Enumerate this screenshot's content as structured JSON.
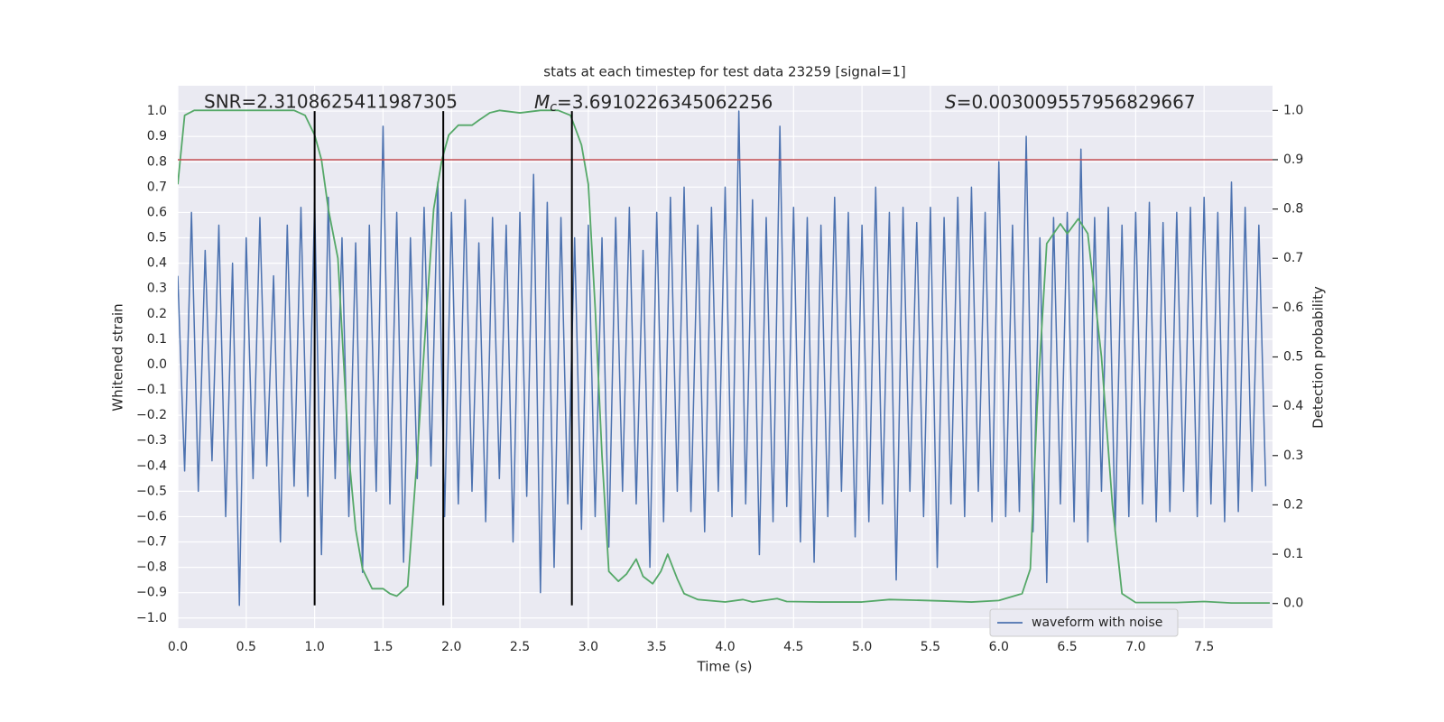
{
  "chart_data": {
    "type": "line",
    "title": "stats at each timestep for test data 23259 [signal=1]",
    "xlabel": "Time (s)",
    "ylabel": "Whitened strain",
    "y2label": "Detection probability",
    "annotations": [
      "SNR=2.3108625411987305",
      {
        "symbol": "M",
        "sub": "c",
        "rest": "=3.6910226345062256"
      },
      {
        "symbol": "S",
        "rest": "=0.003009557956829667"
      }
    ],
    "xlim": [
      0,
      8
    ],
    "ylim": [
      -1.04,
      1.1
    ],
    "y2lim": [
      -0.05,
      1.05
    ],
    "xticks": [
      {
        "value": 0,
        "label": "0.0"
      },
      {
        "value": 0.5,
        "label": "0.5"
      },
      {
        "value": 1,
        "label": "1.0"
      },
      {
        "value": 1.5,
        "label": "1.5"
      },
      {
        "value": 2,
        "label": "2.0"
      },
      {
        "value": 2.5,
        "label": "2.5"
      },
      {
        "value": 3,
        "label": "3.0"
      },
      {
        "value": 3.5,
        "label": "3.5"
      },
      {
        "value": 4,
        "label": "4.0"
      },
      {
        "value": 4.5,
        "label": "4.5"
      },
      {
        "value": 5,
        "label": "5.0"
      },
      {
        "value": 5.5,
        "label": "5.5"
      },
      {
        "value": 6,
        "label": "6.0"
      },
      {
        "value": 6.5,
        "label": "6.5"
      },
      {
        "value": 7,
        "label": "7.0"
      },
      {
        "value": 7.5,
        "label": "7.5"
      }
    ],
    "yticks": [
      {
        "value": 1,
        "label": "1.0"
      },
      {
        "value": 0.9,
        "label": "0.9"
      },
      {
        "value": 0.8,
        "label": "0.8"
      },
      {
        "value": 0.7,
        "label": "0.7"
      },
      {
        "value": 0.6,
        "label": "0.6"
      },
      {
        "value": 0.5,
        "label": "0.5"
      },
      {
        "value": 0.4,
        "label": "0.4"
      },
      {
        "value": 0.3,
        "label": "0.3"
      },
      {
        "value": 0.2,
        "label": "0.2"
      },
      {
        "value": 0.1,
        "label": "0.1"
      },
      {
        "value": 0,
        "label": "0.0"
      },
      {
        "value": -0.1,
        "label": "−0.1"
      },
      {
        "value": -0.2,
        "label": "−0.2"
      },
      {
        "value": -0.3,
        "label": "−0.3"
      },
      {
        "value": -0.4,
        "label": "−0.4"
      },
      {
        "value": -0.5,
        "label": "−0.5"
      },
      {
        "value": -0.6,
        "label": "−0.6"
      },
      {
        "value": -0.7,
        "label": "−0.7"
      },
      {
        "value": -0.8,
        "label": "−0.8"
      },
      {
        "value": -0.9,
        "label": "−0.9"
      },
      {
        "value": -1,
        "label": "−1.0"
      }
    ],
    "y2ticks": [
      {
        "value": 1,
        "label": "1.0"
      },
      {
        "value": 0.9,
        "label": "0.9"
      },
      {
        "value": 0.8,
        "label": "0.8"
      },
      {
        "value": 0.7,
        "label": "0.7"
      },
      {
        "value": 0.6,
        "label": "0.6"
      },
      {
        "value": 0.5,
        "label": "0.5"
      },
      {
        "value": 0.4,
        "label": "0.4"
      },
      {
        "value": 0.3,
        "label": "0.3"
      },
      {
        "value": 0.2,
        "label": "0.2"
      },
      {
        "value": 0.1,
        "label": "0.1"
      },
      {
        "value": 0,
        "label": "0.0"
      }
    ],
    "grid": true,
    "legend": "lower right",
    "hline": {
      "value": 0.9,
      "axis": "y2",
      "color": "#c44e52"
    },
    "vlines": [
      1.0,
      1.94,
      2.88
    ],
    "vline_range": [
      -0.95,
      1.0
    ],
    "vline_color": "#000000",
    "series": [
      {
        "name": "waveform with noise",
        "color": "#4c72b0",
        "x": [
          0,
          0.05,
          0.1,
          0.15,
          0.2,
          0.25,
          0.3,
          0.35,
          0.4,
          0.45,
          0.5,
          0.55,
          0.6,
          0.65,
          0.7,
          0.75,
          0.8,
          0.85,
          0.9,
          0.95,
          1,
          1.05,
          1.1,
          1.15,
          1.2,
          1.25,
          1.3,
          1.35,
          1.4,
          1.45,
          1.5,
          1.55,
          1.6,
          1.65,
          1.7,
          1.75,
          1.8,
          1.85,
          1.9,
          1.95,
          2,
          2.05,
          2.1,
          2.15,
          2.2,
          2.25,
          2.3,
          2.35,
          2.4,
          2.45,
          2.5,
          2.55,
          2.6,
          2.65,
          2.7,
          2.75,
          2.8,
          2.85,
          2.9,
          2.95,
          3,
          3.05,
          3.1,
          3.15,
          3.2,
          3.25,
          3.3,
          3.35,
          3.4,
          3.45,
          3.5,
          3.55,
          3.6,
          3.65,
          3.7,
          3.75,
          3.8,
          3.85,
          3.9,
          3.95,
          4,
          4.05,
          4.1,
          4.15,
          4.2,
          4.25,
          4.3,
          4.35,
          4.4,
          4.45,
          4.5,
          4.55,
          4.6,
          4.65,
          4.7,
          4.75,
          4.8,
          4.85,
          4.9,
          4.95,
          5,
          5.05,
          5.1,
          5.15,
          5.2,
          5.25,
          5.3,
          5.35,
          5.4,
          5.45,
          5.5,
          5.55,
          5.6,
          5.65,
          5.7,
          5.75,
          5.8,
          5.85,
          5.9,
          5.95,
          6,
          6.05,
          6.1,
          6.15,
          6.2,
          6.25,
          6.3,
          6.35,
          6.4,
          6.45,
          6.5,
          6.55,
          6.6,
          6.65,
          6.7,
          6.75,
          6.8,
          6.85,
          6.9,
          6.95,
          7,
          7.05,
          7.1,
          7.15,
          7.2,
          7.25,
          7.3,
          7.35,
          7.4,
          7.45,
          7.5,
          7.55,
          7.6,
          7.65,
          7.7,
          7.75,
          7.8,
          7.85,
          7.9,
          7.95
        ],
        "values": [
          0.35,
          -0.42,
          0.6,
          -0.5,
          0.45,
          -0.38,
          0.55,
          -0.6,
          0.4,
          -0.95,
          0.5,
          -0.45,
          0.58,
          -0.4,
          0.35,
          -0.7,
          0.55,
          -0.48,
          0.62,
          -0.52,
          0.64,
          -0.75,
          0.66,
          -0.45,
          0.5,
          -0.6,
          0.48,
          -0.82,
          0.55,
          -0.5,
          0.94,
          -0.55,
          0.6,
          -0.78,
          0.5,
          -0.45,
          0.62,
          -0.4,
          0.72,
          -0.6,
          0.6,
          -0.55,
          0.65,
          -0.5,
          0.48,
          -0.62,
          0.58,
          -0.45,
          0.55,
          -0.7,
          0.6,
          -0.52,
          0.75,
          -0.9,
          0.64,
          -0.8,
          0.58,
          -0.55,
          0.5,
          -0.65,
          0.55,
          -0.6,
          0.5,
          -0.72,
          0.58,
          -0.5,
          0.62,
          -0.55,
          0.45,
          -0.8,
          0.6,
          -0.62,
          0.66,
          -0.5,
          0.7,
          -0.58,
          0.55,
          -0.66,
          0.62,
          -0.5,
          0.7,
          -0.6,
          1.0,
          -0.55,
          0.65,
          -0.75,
          0.58,
          -0.62,
          0.94,
          -0.56,
          0.62,
          -0.7,
          0.58,
          -0.78,
          0.55,
          -0.6,
          0.66,
          -0.5,
          0.6,
          -0.68,
          0.55,
          -0.62,
          0.7,
          -0.55,
          0.6,
          -0.85,
          0.62,
          -0.5,
          0.56,
          -0.6,
          0.62,
          -0.8,
          0.58,
          -0.55,
          0.66,
          -0.6,
          0.7,
          -0.5,
          0.6,
          -0.62,
          0.8,
          -0.6,
          0.55,
          -0.58,
          0.9,
          -0.66,
          0.5,
          -0.86,
          0.58,
          -0.55,
          0.6,
          -0.62,
          0.85,
          -0.7,
          0.58,
          -0.5,
          0.62,
          -0.66,
          0.55,
          -0.6,
          0.6,
          -0.55,
          0.64,
          -0.62,
          0.56,
          -0.58,
          0.6,
          -0.5,
          0.62,
          -0.6,
          0.66,
          -0.55,
          0.6,
          -0.62,
          0.72,
          -0.58,
          0.62,
          -0.5,
          0.55,
          -0.48
        ]
      },
      {
        "color": "#55a868",
        "axis": "y2",
        "x": [
          0,
          0.05,
          0.12,
          0.3,
          0.5,
          0.7,
          0.85,
          0.93,
          1.0,
          1.05,
          1.1,
          1.17,
          1.25,
          1.3,
          1.35,
          1.42,
          1.5,
          1.55,
          1.6,
          1.68,
          1.75,
          1.82,
          1.87,
          1.93,
          1.98,
          2.05,
          2.15,
          2.2,
          2.28,
          2.35,
          2.5,
          2.65,
          2.78,
          2.87,
          2.95,
          3.0,
          3.05,
          3.1,
          3.15,
          3.22,
          3.28,
          3.35,
          3.4,
          3.47,
          3.53,
          3.58,
          3.65,
          3.7,
          3.8,
          4.0,
          4.13,
          4.2,
          4.38,
          4.45,
          4.7,
          5.0,
          5.2,
          5.35,
          5.6,
          5.8,
          6.0,
          6.17,
          6.23,
          6.28,
          6.35,
          6.45,
          6.5,
          6.58,
          6.65,
          6.75,
          6.83,
          6.9,
          7.0,
          7.3,
          7.5,
          7.7,
          7.98
        ],
        "values": [
          0.85,
          0.99,
          1.0,
          1.0,
          1.0,
          1.0,
          1.0,
          0.99,
          0.95,
          0.9,
          0.8,
          0.7,
          0.3,
          0.15,
          0.07,
          0.03,
          0.03,
          0.02,
          0.015,
          0.035,
          0.3,
          0.6,
          0.8,
          0.9,
          0.95,
          0.97,
          0.97,
          0.98,
          0.995,
          1.0,
          0.995,
          1.0,
          1.0,
          0.99,
          0.93,
          0.85,
          0.6,
          0.3,
          0.065,
          0.045,
          0.06,
          0.09,
          0.055,
          0.04,
          0.065,
          0.1,
          0.05,
          0.02,
          0.008,
          0.003,
          0.008,
          0.003,
          0.01,
          0.004,
          0.003,
          0.003,
          0.008,
          0.007,
          0.005,
          0.003,
          0.006,
          0.02,
          0.07,
          0.4,
          0.73,
          0.77,
          0.75,
          0.78,
          0.75,
          0.5,
          0.2,
          0.02,
          0.002,
          0.002,
          0.004,
          0.001,
          0.001
        ]
      }
    ]
  }
}
